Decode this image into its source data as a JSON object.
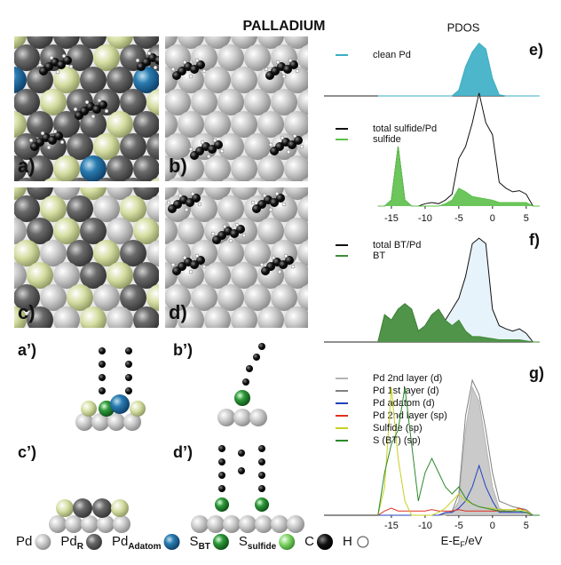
{
  "title": "PALLADIUM",
  "panel_labels": {
    "a": "a)",
    "b": "b)",
    "c": "c)",
    "d": "d)",
    "a_side": "a’)",
    "b_side": "b’)",
    "c_side": "c’)",
    "d_side": "d’)"
  },
  "atom_legend": [
    {
      "text": "Pd"
    },
    {
      "text": "Pd",
      "sub": "R"
    },
    {
      "text": "Pd",
      "sub": "Adatom"
    },
    {
      "text": "S",
      "sub": "BT"
    },
    {
      "text": "S",
      "sub": "sulfide"
    },
    {
      "text": "C"
    },
    {
      "text": "H"
    }
  ],
  "chart_data": [
    {
      "type": "line",
      "title": "PDOS",
      "label": "e)",
      "xlim": [
        -25,
        7
      ],
      "ylim": [
        0,
        1
      ],
      "x": [
        -17,
        -16,
        -15,
        -14,
        -13,
        -12,
        -11,
        -10,
        -9,
        -8,
        -7,
        -6,
        -5,
        -4,
        -3,
        -2,
        -1,
        0,
        1,
        2,
        3,
        4,
        5,
        6,
        7
      ],
      "series": [
        {
          "name": "clean Pd",
          "color": "#3aaec4",
          "fill": "#3aaec4",
          "values": [
            0,
            0,
            0,
            0,
            0,
            0,
            0,
            0,
            0,
            0,
            0,
            0,
            0.1,
            0.5,
            0.75,
            0.9,
            0.8,
            0.3,
            0.02,
            0,
            0,
            0,
            0,
            0,
            0
          ]
        }
      ]
    },
    {
      "type": "line",
      "xlim": [
        -25,
        7
      ],
      "ylim": [
        0,
        1
      ],
      "xticks": [
        -15,
        -10,
        -5,
        0,
        5
      ],
      "x": [
        -17,
        -16,
        -15,
        -14,
        -13,
        -12,
        -11,
        -10,
        -9,
        -8,
        -7,
        -6,
        -5,
        -4,
        -3,
        -2,
        -1,
        0,
        1,
        2,
        3,
        4,
        5,
        6,
        7
      ],
      "series": [
        {
          "name": "total sulfide/Pd",
          "color": "#111111",
          "fill": "#ffffff",
          "values": [
            0,
            0,
            0.05,
            0.5,
            0.05,
            0,
            0,
            0.02,
            0.03,
            0.02,
            0.05,
            0.1,
            0.4,
            0.5,
            0.7,
            0.95,
            0.7,
            0.6,
            0.2,
            0.15,
            0.12,
            0.13,
            0.1,
            0,
            0
          ]
        },
        {
          "name": "sulfide",
          "color": "#5cc04a",
          "fill": "#5cc04a",
          "values": [
            0,
            0,
            0.05,
            0.5,
            0.05,
            0,
            0,
            0,
            0,
            0,
            0.02,
            0.05,
            0.15,
            0.12,
            0.08,
            0.07,
            0.06,
            0.05,
            0.03,
            0.03,
            0.03,
            0.03,
            0.03,
            0,
            0
          ]
        }
      ]
    },
    {
      "type": "line",
      "label": "f)",
      "xlim": [
        -25,
        7
      ],
      "ylim": [
        0,
        1
      ],
      "x": [
        -17,
        -16,
        -15,
        -14,
        -13,
        -12,
        -11,
        -10,
        -9,
        -8,
        -7,
        -6,
        -5,
        -4,
        -3,
        -2,
        -1,
        0,
        1,
        2,
        3,
        4,
        5,
        6,
        7
      ],
      "series": [
        {
          "name": "total BT/Pd",
          "color": "#111111",
          "fill": "#e4f2fa",
          "values": [
            0,
            0.25,
            0.2,
            0.3,
            0.35,
            0.3,
            0.1,
            0.15,
            0.25,
            0.3,
            0.2,
            0.3,
            0.4,
            0.6,
            0.9,
            0.95,
            0.9,
            0.3,
            0.15,
            0.12,
            0.1,
            0.12,
            0.08,
            0,
            0
          ]
        },
        {
          "name": "BT",
          "color": "#3f8a36",
          "fill": "#3f8a36",
          "values": [
            0,
            0.25,
            0.2,
            0.3,
            0.35,
            0.3,
            0.1,
            0.15,
            0.25,
            0.3,
            0.2,
            0.15,
            0.2,
            0.1,
            0.05,
            0.05,
            0.04,
            0.03,
            0.02,
            0.02,
            0.02,
            0.02,
            0.01,
            0,
            0
          ]
        }
      ]
    },
    {
      "type": "line",
      "label": "g)",
      "xlim": [
        -25,
        7
      ],
      "ylim": [
        0,
        1
      ],
      "xticks": [
        -15,
        -10,
        -5,
        0,
        5
      ],
      "xlabel": {
        "main": "E-E",
        "sub": "F",
        "tail": "/eV"
      },
      "x": [
        -17,
        -16,
        -15,
        -14,
        -13,
        -12,
        -11,
        -10,
        -9,
        -8,
        -7,
        -6,
        -5,
        -4,
        -3,
        -2,
        -1,
        0,
        1,
        2,
        3,
        4,
        5,
        6,
        7
      ],
      "series": [
        {
          "name": "Pd 2nd layer (d)",
          "color": "#b4b4b4",
          "fill": "#c4c4c4",
          "values": [
            0,
            0,
            0,
            0,
            0,
            0,
            0,
            0,
            0,
            0,
            0,
            0.02,
            0.1,
            0.6,
            0.9,
            0.8,
            0.5,
            0.2,
            0.05,
            0.03,
            0.02,
            0.02,
            0.02,
            0,
            0
          ]
        },
        {
          "name": "Pd 1st layer (d)",
          "color": "#808080",
          "values": [
            0,
            0,
            0,
            0,
            0,
            0,
            0,
            0,
            0,
            0,
            0.01,
            0.03,
            0.15,
            0.7,
            0.95,
            0.85,
            0.6,
            0.3,
            0.1,
            0.08,
            0.06,
            0.05,
            0.04,
            0,
            0
          ]
        },
        {
          "name": "Pd adatom (d)",
          "color": "#2040c0",
          "values": [
            0,
            0,
            0,
            0,
            0,
            0,
            0,
            0,
            0,
            0,
            0.02,
            0.02,
            0.05,
            0.1,
            0.2,
            0.35,
            0.2,
            0.1,
            0.02,
            0.02,
            0.02,
            0.02,
            0.02,
            0,
            0
          ]
        },
        {
          "name": "Pd 2nd layer (sp)",
          "color": "#e03020",
          "values": [
            0,
            0.03,
            0.05,
            0.03,
            0.03,
            0.03,
            0.03,
            0.03,
            0.04,
            0.03,
            0.03,
            0.03,
            0.04,
            0.03,
            0.03,
            0.03,
            0.03,
            0.03,
            0.03,
            0.03,
            0.03,
            0.05,
            0.03,
            0,
            0
          ]
        },
        {
          "name": "Sulfide (sp)",
          "color": "#c8d020",
          "values": [
            0,
            0.2,
            0.9,
            0.4,
            0.1,
            0,
            0,
            0,
            0,
            0.02,
            0.05,
            0.1,
            0.15,
            0.1,
            0.08,
            0.06,
            0.05,
            0.05,
            0.04,
            0.04,
            0.04,
            0.04,
            0.03,
            0,
            0
          ]
        },
        {
          "name": "S (BT) (sp)",
          "color": "#2a8a2a",
          "values": [
            0,
            0.3,
            0.5,
            0.6,
            0.9,
            0.5,
            0.1,
            0.3,
            0.4,
            0.3,
            0.2,
            0.15,
            0.2,
            0.12,
            0.08,
            0.06,
            0.05,
            0.04,
            0.03,
            0.03,
            0.03,
            0.03,
            0.02,
            0,
            0
          ]
        }
      ]
    }
  ]
}
